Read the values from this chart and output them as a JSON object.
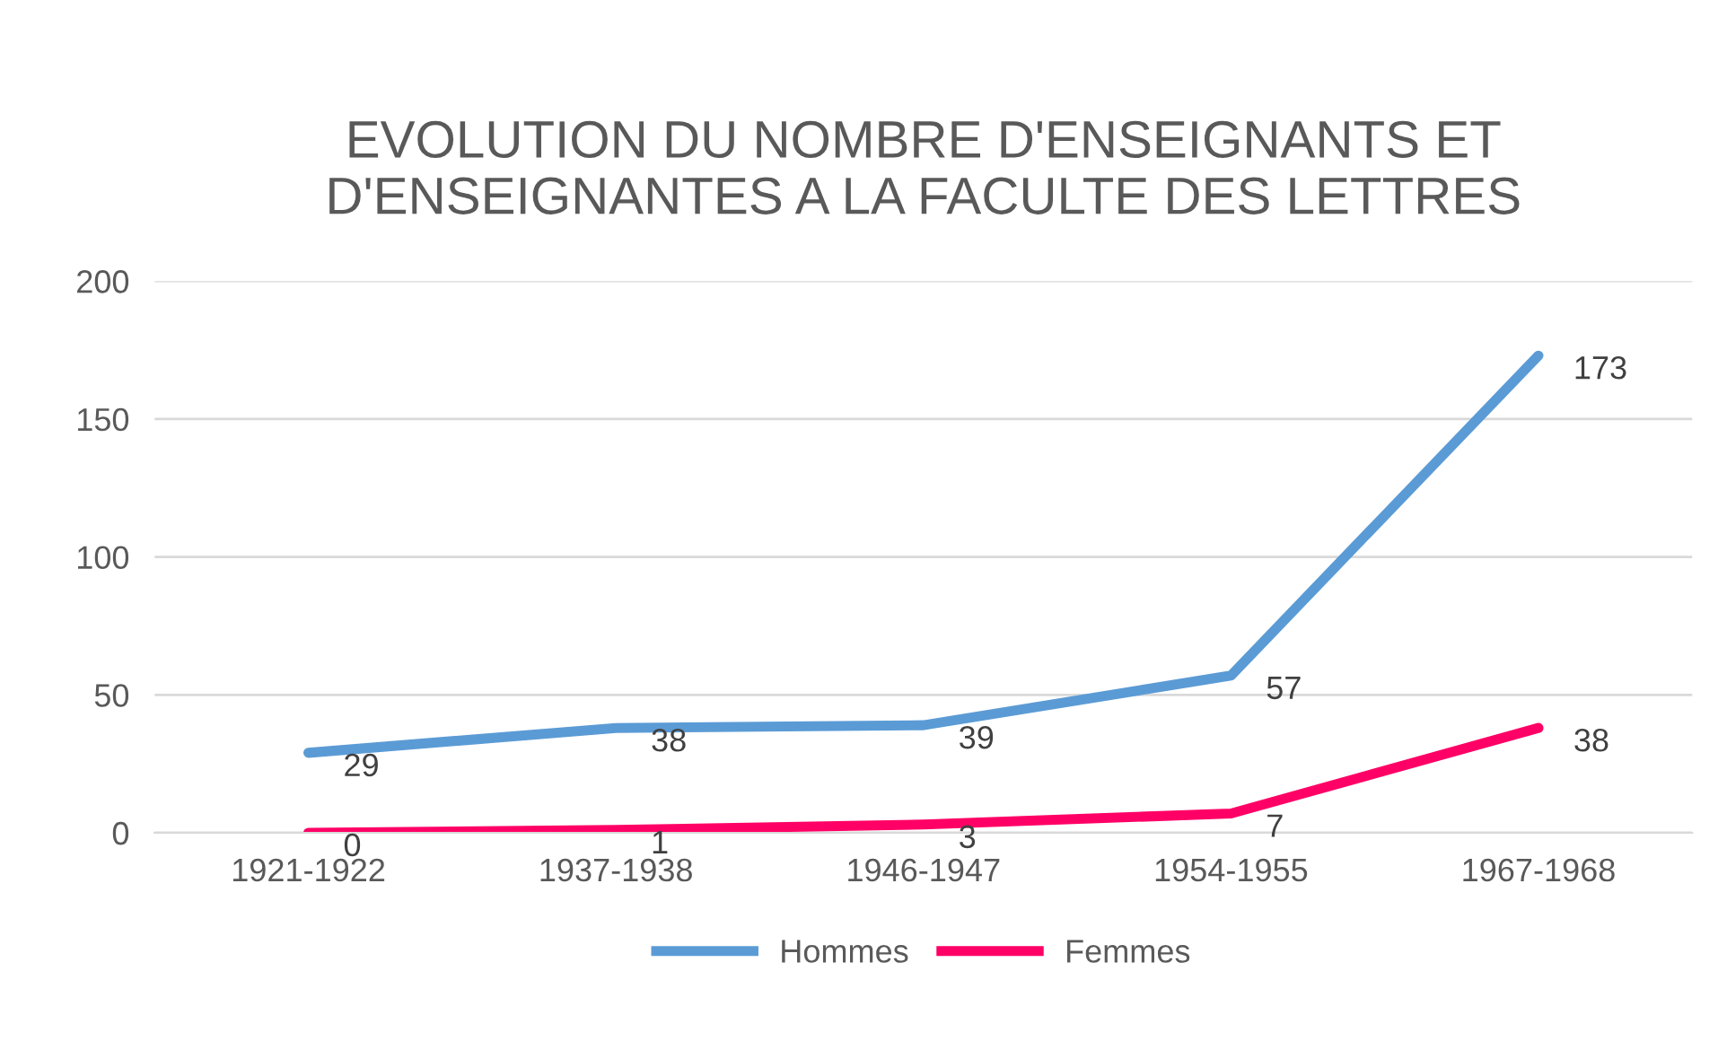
{
  "chart_data": {
    "type": "line",
    "title": "EVOLUTION DU NOMBRE D'ENSEIGNANTS ET D'ENSEIGNANTES A LA FACULTE DES LETTRES",
    "categories": [
      "1921-1922",
      "1937-1938",
      "1946-1947",
      "1954-1955",
      "1967-1968"
    ],
    "series": [
      {
        "name": "Hommes",
        "color": "#5b9bd5",
        "values": [
          29,
          38,
          39,
          57,
          173
        ]
      },
      {
        "name": "Femmes",
        "color": "#ff0066",
        "values": [
          0,
          1,
          3,
          7,
          38
        ]
      }
    ],
    "ylim": [
      0,
      200
    ],
    "yticks": [
      0,
      50,
      100,
      150,
      200
    ],
    "grid": "y",
    "legend": "bottom",
    "data_labels": true,
    "marker": "none",
    "line_style": "solid"
  }
}
